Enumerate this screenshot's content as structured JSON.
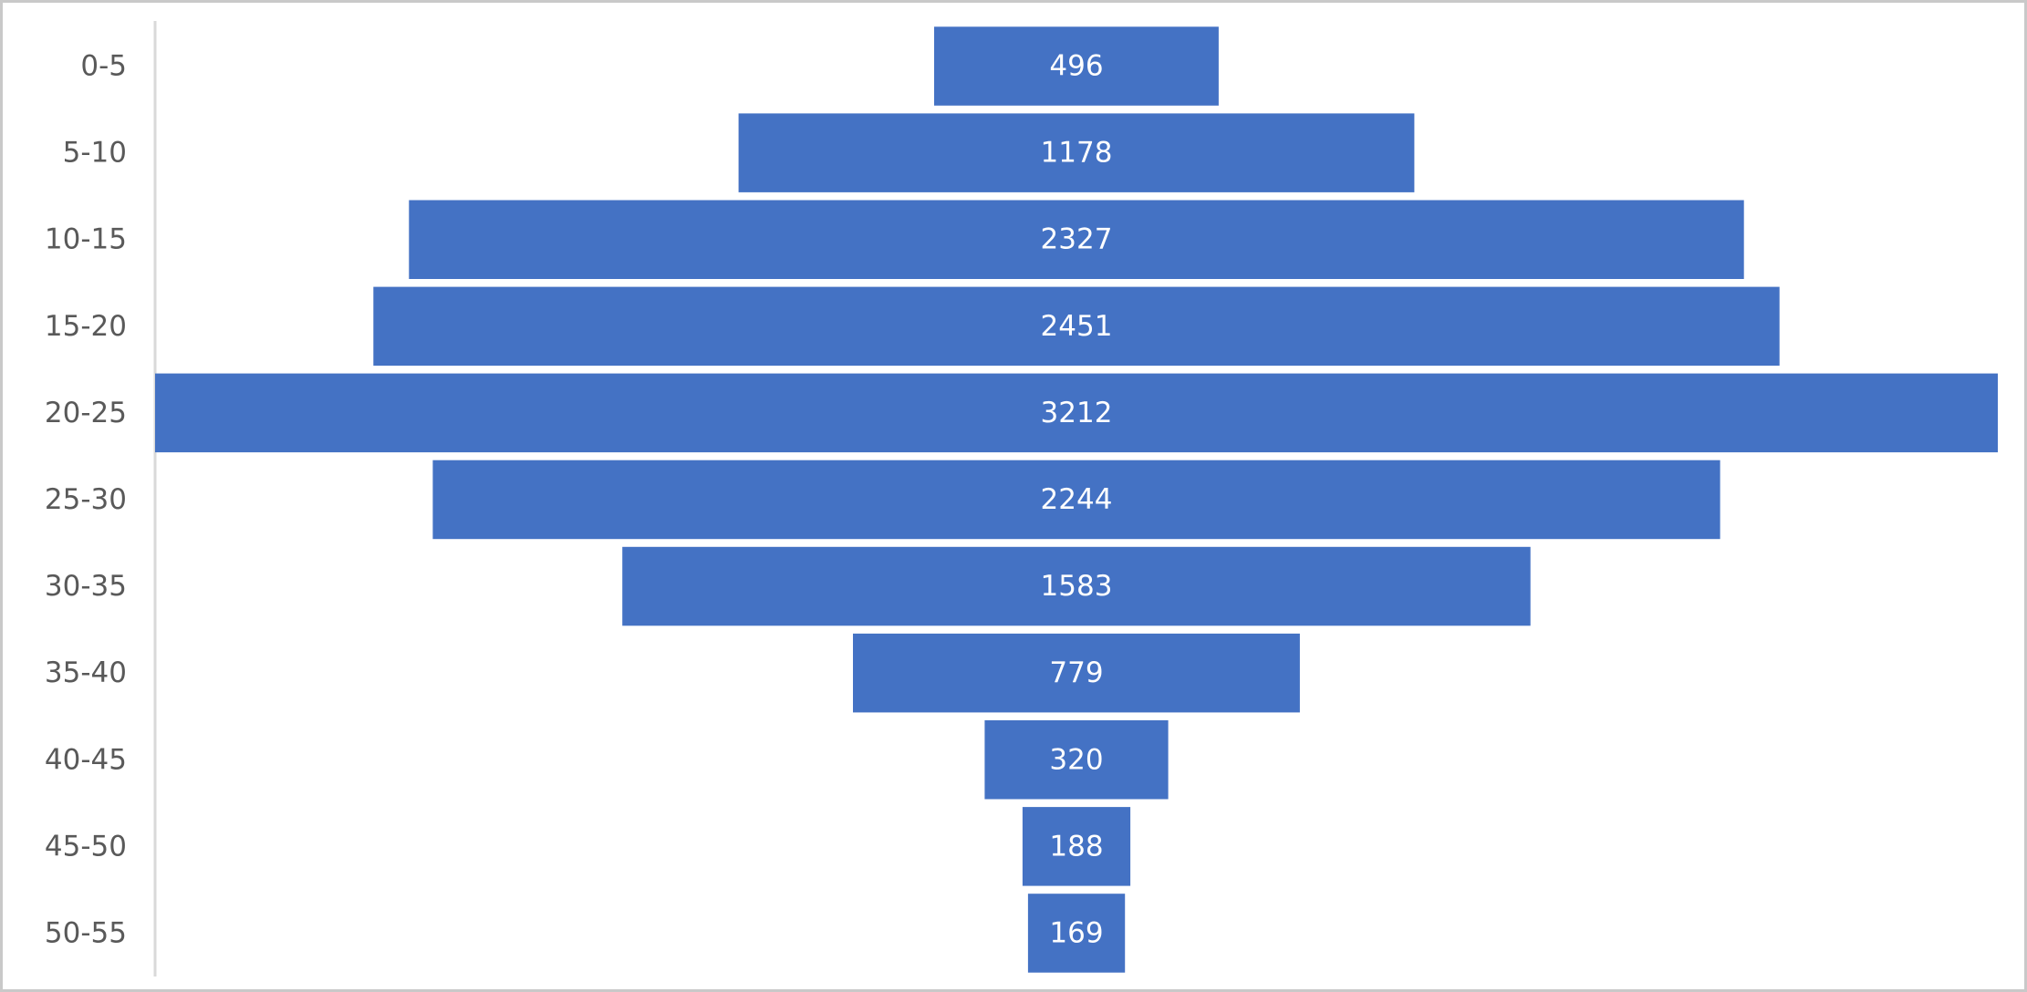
{
  "chart_data": {
    "type": "bar",
    "orientation": "horizontal",
    "layout": "funnel",
    "categories": [
      "0-5",
      "5-10",
      "10-15",
      "15-20",
      "20-25",
      "25-30",
      "30-35",
      "35-40",
      "40-45",
      "45-50",
      "50-55"
    ],
    "values": [
      496,
      1178,
      2327,
      2451,
      3212,
      2244,
      1583,
      779,
      320,
      188,
      169
    ],
    "title": "",
    "xlabel": "",
    "ylabel": "",
    "grid": false,
    "legend": "none",
    "data_labels": true,
    "bar_color": "#4472C4",
    "label_color": "#FFFFFF",
    "category_label_color": "#595959",
    "axis_line_color": "#D9D9D9"
  }
}
